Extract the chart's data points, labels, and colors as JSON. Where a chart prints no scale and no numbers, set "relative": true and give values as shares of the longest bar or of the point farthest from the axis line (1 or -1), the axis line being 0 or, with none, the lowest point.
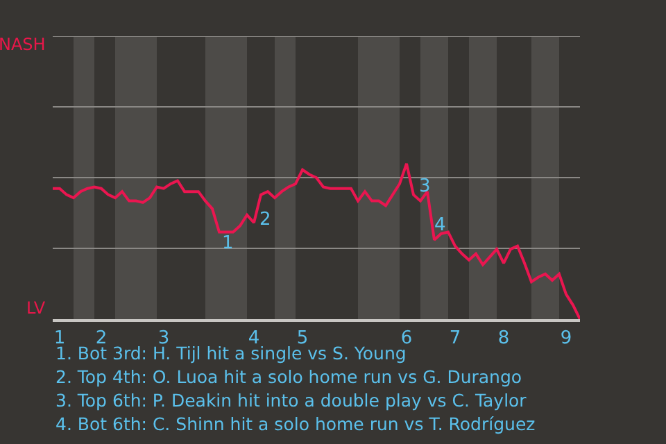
{
  "chart_data": {
    "type": "line",
    "relative": true,
    "categories": [
      null,
      "1",
      null,
      null,
      null,
      null,
      null,
      "2",
      null,
      null,
      null,
      null,
      null,
      null,
      null,
      null,
      "3",
      null,
      null,
      null,
      null,
      null,
      null,
      null,
      null,
      null,
      null,
      null,
      null,
      "4",
      null,
      null,
      null,
      null,
      null,
      null,
      "5",
      null,
      null,
      null,
      null,
      null,
      null,
      null,
      null,
      null,
      null,
      null,
      null,
      null,
      null,
      "6",
      null,
      null,
      null,
      null,
      null,
      null,
      "7",
      null,
      null,
      null,
      null,
      null,
      null,
      "8",
      null,
      null,
      null,
      null,
      null,
      null,
      null,
      null,
      "9",
      null,
      null
    ],
    "series": [
      {
        "color": "#ea1650",
        "values": [
          0.84,
          0.84,
          0.8,
          0.78,
          0.82,
          0.84,
          0.85,
          0.84,
          0.8,
          0.78,
          0.82,
          0.76,
          0.76,
          0.75,
          0.78,
          0.85,
          0.84,
          0.87,
          0.89,
          0.82,
          0.82,
          0.82,
          0.76,
          0.71,
          0.56,
          0.56,
          0.56,
          0.6,
          0.67,
          0.62,
          0.8,
          0.82,
          0.78,
          0.82,
          0.85,
          0.87,
          0.96,
          0.93,
          0.91,
          0.85,
          0.84,
          0.84,
          0.84,
          0.84,
          0.76,
          0.82,
          0.76,
          0.76,
          0.73,
          0.8,
          0.87,
          1,
          0.8,
          0.76,
          0.82,
          0.51,
          0.55,
          0.56,
          0.47,
          0.42,
          0.38,
          0.42,
          0.35,
          0.4,
          0.45,
          0.36,
          0.45,
          0.47,
          0.36,
          0.24,
          0.27,
          0.29,
          0.25,
          0.29,
          0.16,
          0.09,
          0
        ]
      }
    ],
    "marker": "none",
    "line_style": "solid",
    "ref_lines": [
      {
        "axis": "y",
        "value": 0.455,
        "color": "#8a8885"
      },
      {
        "axis": "y",
        "value": 0.91,
        "color": "#8a8885"
      },
      {
        "axis": "y",
        "value": 1.365,
        "color": "#8a8885"
      },
      {
        "axis": "y",
        "value": 1.82,
        "color": "#8a8885"
      }
    ],
    "annotations": [
      "NASH",
      "LV",
      "1",
      "2",
      "3",
      "4",
      "1. Bot 3rd: H. Tijl hit a single vs S. Young",
      "2. Top 4th: O. Luoa hit a solo home run vs G. Durango",
      "3. Top 6th: P. Deakin hit into a double play vs C. Taylor",
      "4. Bot 6th: C. Shinn hit a solo home run vs T. Rodríguez"
    ]
  }
}
